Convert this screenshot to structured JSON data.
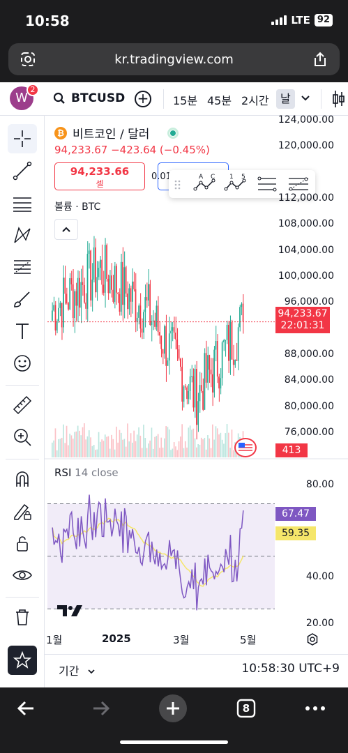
{
  "status": {
    "time": "10:58",
    "network": "LTE",
    "battery": "92"
  },
  "browser": {
    "url": "kr.tradingview.com",
    "tab_count": "8"
  },
  "header": {
    "avatar_letter": "W",
    "notifications": "2",
    "symbol": "BTCUSD",
    "timeframes": [
      "15분",
      "45분",
      "2시간",
      "날"
    ],
    "active_timeframe": "날"
  },
  "legend": {
    "name": "비트코인 / 달러",
    "values": "94,233.67 −423.64 (−0.45%)",
    "sell_price": "94,233.66",
    "sell_label": "셀",
    "spread": "0.01",
    "volume_label": "볼륨 · BTC"
  },
  "price_axis": [
    "124,000.00",
    "120,000.00",
    "112,000.00",
    "108,000.00",
    "104,000.00",
    "100,000.00",
    "96,000.00",
    "88,000.00",
    "84,000.00",
    "80,000.00",
    "76,000.00"
  ],
  "price_tag": {
    "price": "94,233.67",
    "countdown": "22:01:31"
  },
  "volume_tag": "413",
  "rsi": {
    "name": "RSI",
    "params": "14 close",
    "axis": [
      "80.00",
      "40.00",
      "20.00"
    ],
    "rsi_value": "67.47",
    "ma_value": "59.35"
  },
  "x_axis": [
    "1월",
    "2025",
    "3월",
    "5월"
  ],
  "bottom": {
    "period_label": "기간",
    "clock": "10:58:30 UTC+9"
  },
  "float_toolbar": {
    "abc_label_a": "A",
    "abc_label_c": "C",
    "num_label_1": "1",
    "num_label_5": "5"
  },
  "colors": {
    "up": "#22ab94",
    "down": "#f23645",
    "rsi": "#7e57c2",
    "rsi_ma": "#f5e66a",
    "accent": "#2962ff"
  },
  "chart_data": {
    "type": "candlestick",
    "x": [
      "2024-12",
      "2025-01",
      "2025-02",
      "2025-03",
      "2025-04"
    ],
    "close_approx": [
      96000,
      102000,
      96000,
      83000,
      94233.67
    ],
    "ylim": [
      74000,
      125000
    ],
    "rsi_ylim": [
      20,
      85
    ],
    "rsi_bands": [
      30,
      50,
      70
    ]
  }
}
